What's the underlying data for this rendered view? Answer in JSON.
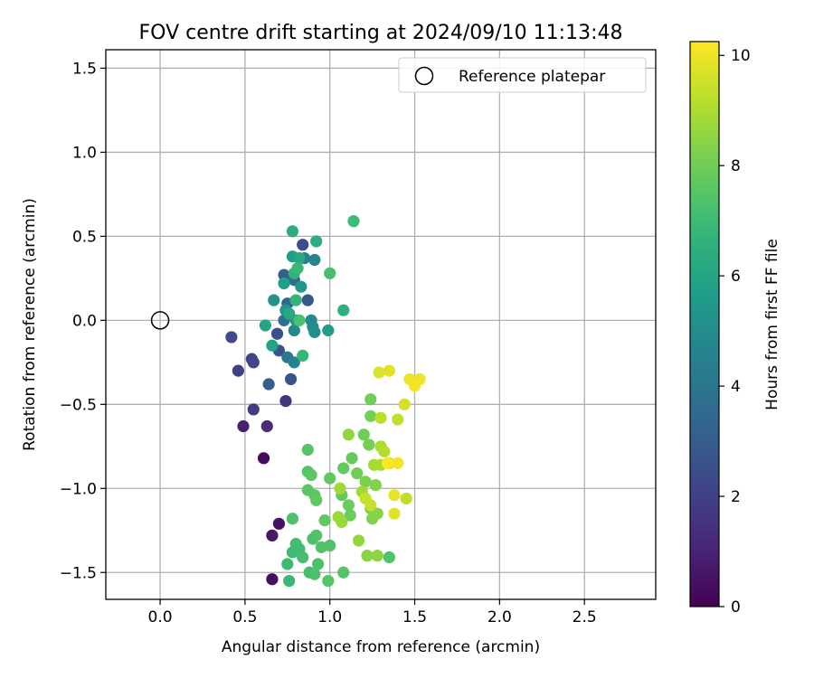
{
  "chart_data": {
    "type": "scatter",
    "title": "FOV centre drift starting at 2024/09/10 11:13:48",
    "xlabel": "Angular distance from reference (arcmin)",
    "ylabel": "Rotation from reference (arcmin)",
    "xlim": [
      -0.32,
      2.92
    ],
    "ylim": [
      -1.66,
      1.61
    ],
    "xticks": [
      0.0,
      0.5,
      1.0,
      1.5,
      2.0,
      2.5
    ],
    "xtick_labels": [
      "0.0",
      "0.5",
      "1.0",
      "1.5",
      "2.0",
      "2.5"
    ],
    "yticks": [
      -1.5,
      -1.0,
      -0.5,
      0.0,
      0.5,
      1.0,
      1.5
    ],
    "ytick_labels": [
      "−1.5",
      "−1.0",
      "−0.5",
      "0.0",
      "0.5",
      "1.0",
      "1.5"
    ],
    "grid": true,
    "legend": {
      "position": "upper right",
      "entries": [
        "Reference platepar"
      ]
    },
    "reference_point": {
      "label": "Reference platepar",
      "x": 0.0,
      "y": 0.0
    },
    "colorbar": {
      "label": "Hours from first FF file",
      "colormap": "viridis",
      "range": [
        0,
        10.25
      ],
      "ticks": [
        0,
        2,
        4,
        6,
        8,
        10
      ],
      "tick_labels": [
        "0",
        "2",
        "4",
        "6",
        "8",
        "10"
      ]
    },
    "series": [
      {
        "points": [
          {
            "x": 0.61,
            "y": -0.82,
            "h": 0.3
          },
          {
            "x": 0.66,
            "y": -1.54,
            "h": 0.4
          },
          {
            "x": 0.7,
            "y": -1.21,
            "h": 0.5
          },
          {
            "x": 0.66,
            "y": -1.28,
            "h": 0.6
          },
          {
            "x": 0.49,
            "y": -0.63,
            "h": 0.9
          },
          {
            "x": 0.63,
            "y": -0.63,
            "h": 1.3
          },
          {
            "x": 0.74,
            "y": -0.48,
            "h": 1.6
          },
          {
            "x": 0.55,
            "y": -0.53,
            "h": 1.8
          },
          {
            "x": 0.46,
            "y": -0.3,
            "h": 2.0
          },
          {
            "x": 0.54,
            "y": -0.23,
            "h": 2.1
          },
          {
            "x": 0.55,
            "y": -0.25,
            "h": 2.2
          },
          {
            "x": 0.42,
            "y": -0.1,
            "h": 2.3
          },
          {
            "x": 0.84,
            "y": 0.45,
            "h": 2.4
          },
          {
            "x": 0.69,
            "y": -0.08,
            "h": 2.5
          },
          {
            "x": 0.7,
            "y": -0.18,
            "h": 2.6
          },
          {
            "x": 0.77,
            "y": -0.35,
            "h": 2.7
          },
          {
            "x": 0.87,
            "y": 0.12,
            "h": 2.8
          },
          {
            "x": 0.64,
            "y": -0.38,
            "h": 3.0
          },
          {
            "x": 0.73,
            "y": 0.27,
            "h": 3.2
          },
          {
            "x": 0.75,
            "y": 0.1,
            "h": 3.4
          },
          {
            "x": 0.79,
            "y": 0.24,
            "h": 3.6
          },
          {
            "x": 0.73,
            "y": 0.0,
            "h": 3.8
          },
          {
            "x": 0.75,
            "y": -0.22,
            "h": 4.2
          },
          {
            "x": 0.79,
            "y": -0.25,
            "h": 4.5
          },
          {
            "x": 0.85,
            "y": 0.37,
            "h": 4.6
          },
          {
            "x": 0.91,
            "y": 0.36,
            "h": 4.7
          },
          {
            "x": 0.79,
            "y": -0.06,
            "h": 4.8
          },
          {
            "x": 0.89,
            "y": 0.0,
            "h": 4.9
          },
          {
            "x": 0.9,
            "y": -0.04,
            "h": 5.0
          },
          {
            "x": 0.91,
            "y": -0.07,
            "h": 5.1
          },
          {
            "x": 0.67,
            "y": 0.12,
            "h": 5.2
          },
          {
            "x": 0.74,
            "y": 0.06,
            "h": 5.3
          },
          {
            "x": 0.8,
            "y": 0.0,
            "h": 5.4
          },
          {
            "x": 0.83,
            "y": 0.2,
            "h": 5.5
          },
          {
            "x": 0.99,
            "y": -0.06,
            "h": 5.6
          },
          {
            "x": 0.78,
            "y": 0.38,
            "h": 5.7
          },
          {
            "x": 0.73,
            "y": 0.22,
            "h": 5.8
          },
          {
            "x": 0.66,
            "y": -0.15,
            "h": 5.9
          },
          {
            "x": 0.62,
            "y": -0.03,
            "h": 6.0
          },
          {
            "x": 0.76,
            "y": 0.04,
            "h": 6.1
          },
          {
            "x": 0.82,
            "y": 0.37,
            "h": 6.2
          },
          {
            "x": 0.78,
            "y": 0.53,
            "h": 6.3
          },
          {
            "x": 0.92,
            "y": 0.47,
            "h": 6.4
          },
          {
            "x": 1.08,
            "y": 0.06,
            "h": 6.5
          },
          {
            "x": 0.79,
            "y": 0.28,
            "h": 6.6
          },
          {
            "x": 0.8,
            "y": 0.12,
            "h": 6.7
          },
          {
            "x": 0.84,
            "y": -0.21,
            "h": 6.8
          },
          {
            "x": 0.81,
            "y": 0.31,
            "h": 6.9
          },
          {
            "x": 1.14,
            "y": 0.59,
            "h": 7.0
          },
          {
            "x": 1.0,
            "y": 0.28,
            "h": 7.2
          },
          {
            "x": 0.82,
            "y": 0.0,
            "h": 7.3
          },
          {
            "x": 0.76,
            "y": -1.55,
            "h": 6.9
          },
          {
            "x": 0.75,
            "y": -1.45,
            "h": 7.0
          },
          {
            "x": 0.78,
            "y": -1.38,
            "h": 7.0
          },
          {
            "x": 0.8,
            "y": -1.33,
            "h": 7.1
          },
          {
            "x": 0.82,
            "y": -1.36,
            "h": 7.1
          },
          {
            "x": 0.84,
            "y": -1.41,
            "h": 7.2
          },
          {
            "x": 0.88,
            "y": -1.5,
            "h": 7.2
          },
          {
            "x": 0.91,
            "y": -1.51,
            "h": 7.3
          },
          {
            "x": 0.93,
            "y": -1.45,
            "h": 7.3
          },
          {
            "x": 0.9,
            "y": -1.3,
            "h": 7.3
          },
          {
            "x": 0.92,
            "y": -1.28,
            "h": 7.4
          },
          {
            "x": 0.95,
            "y": -1.35,
            "h": 7.4
          },
          {
            "x": 1.0,
            "y": -1.34,
            "h": 7.4
          },
          {
            "x": 0.99,
            "y": -1.55,
            "h": 7.5
          },
          {
            "x": 1.08,
            "y": -1.5,
            "h": 7.5
          },
          {
            "x": 0.78,
            "y": -1.18,
            "h": 7.3
          },
          {
            "x": 0.87,
            "y": -0.77,
            "h": 7.5
          },
          {
            "x": 0.87,
            "y": -0.9,
            "h": 7.5
          },
          {
            "x": 0.89,
            "y": -0.92,
            "h": 7.6
          },
          {
            "x": 0.87,
            "y": -1.01,
            "h": 7.6
          },
          {
            "x": 0.91,
            "y": -1.04,
            "h": 7.6
          },
          {
            "x": 0.92,
            "y": -1.07,
            "h": 7.7
          },
          {
            "x": 0.97,
            "y": -1.19,
            "h": 7.7
          },
          {
            "x": 1.0,
            "y": -0.94,
            "h": 7.7
          },
          {
            "x": 1.07,
            "y": -1.04,
            "h": 7.8
          },
          {
            "x": 1.08,
            "y": -0.88,
            "h": 7.8
          },
          {
            "x": 1.13,
            "y": -0.82,
            "h": 7.8
          },
          {
            "x": 1.11,
            "y": -1.1,
            "h": 7.9
          },
          {
            "x": 1.12,
            "y": -1.16,
            "h": 7.9
          },
          {
            "x": 1.16,
            "y": -0.91,
            "h": 8.0
          },
          {
            "x": 1.2,
            "y": -0.68,
            "h": 8.0
          },
          {
            "x": 1.24,
            "y": -0.47,
            "h": 8.0
          },
          {
            "x": 1.24,
            "y": -0.57,
            "h": 8.1
          },
          {
            "x": 1.23,
            "y": -0.74,
            "h": 8.1
          },
          {
            "x": 1.21,
            "y": -0.96,
            "h": 8.2
          },
          {
            "x": 1.24,
            "y": -1.12,
            "h": 8.2
          },
          {
            "x": 1.25,
            "y": -1.18,
            "h": 8.3
          },
          {
            "x": 1.27,
            "y": -0.98,
            "h": 8.3
          },
          {
            "x": 1.28,
            "y": -1.15,
            "h": 8.4
          },
          {
            "x": 1.22,
            "y": -1.4,
            "h": 8.4
          },
          {
            "x": 1.28,
            "y": -1.4,
            "h": 8.5
          },
          {
            "x": 1.35,
            "y": -1.41,
            "h": 7.4
          },
          {
            "x": 1.17,
            "y": -1.31,
            "h": 8.6
          },
          {
            "x": 1.11,
            "y": -0.68,
            "h": 8.6
          },
          {
            "x": 1.05,
            "y": -1.17,
            "h": 8.7
          },
          {
            "x": 1.07,
            "y": -1.2,
            "h": 8.7
          },
          {
            "x": 1.06,
            "y": -1.0,
            "h": 8.8
          },
          {
            "x": 1.19,
            "y": -1.02,
            "h": 8.8
          },
          {
            "x": 1.3,
            "y": -0.86,
            "h": 8.9
          },
          {
            "x": 1.26,
            "y": -0.86,
            "h": 8.9
          },
          {
            "x": 1.3,
            "y": -0.75,
            "h": 9.0
          },
          {
            "x": 1.32,
            "y": -0.78,
            "h": 9.1
          },
          {
            "x": 1.35,
            "y": -0.85,
            "h": 9.2
          },
          {
            "x": 1.3,
            "y": -0.58,
            "h": 9.2
          },
          {
            "x": 1.4,
            "y": -0.59,
            "h": 9.3
          },
          {
            "x": 1.45,
            "y": -1.06,
            "h": 9.3
          },
          {
            "x": 1.21,
            "y": -1.06,
            "h": 9.4
          },
          {
            "x": 1.24,
            "y": -1.1,
            "h": 9.4
          },
          {
            "x": 1.44,
            "y": -0.5,
            "h": 9.6
          },
          {
            "x": 1.29,
            "y": -0.31,
            "h": 9.7
          },
          {
            "x": 1.35,
            "y": -0.3,
            "h": 9.8
          },
          {
            "x": 1.38,
            "y": -1.15,
            "h": 9.8
          },
          {
            "x": 1.38,
            "y": -1.04,
            "h": 9.9
          },
          {
            "x": 1.47,
            "y": -0.35,
            "h": 10.0
          },
          {
            "x": 1.53,
            "y": -0.35,
            "h": 10.0
          },
          {
            "x": 1.5,
            "y": -0.39,
            "h": 10.1
          },
          {
            "x": 1.4,
            "y": -0.85,
            "h": 10.1
          },
          {
            "x": 1.34,
            "y": -0.85,
            "h": 10.2
          }
        ]
      }
    ]
  }
}
